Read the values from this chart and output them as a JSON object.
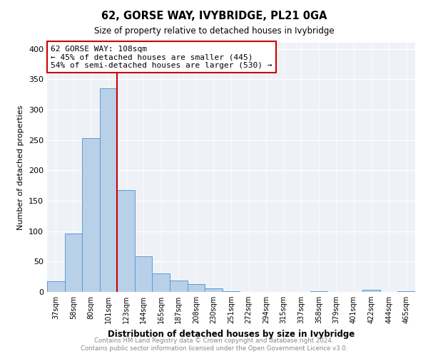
{
  "title": "62, GORSE WAY, IVYBRIDGE, PL21 0GA",
  "subtitle": "Size of property relative to detached houses in Ivybridge",
  "xlabel": "Distribution of detached houses by size in Ivybridge",
  "ylabel": "Number of detached properties",
  "bar_labels": [
    "37sqm",
    "58sqm",
    "80sqm",
    "101sqm",
    "123sqm",
    "144sqm",
    "165sqm",
    "187sqm",
    "208sqm",
    "230sqm",
    "251sqm",
    "272sqm",
    "294sqm",
    "315sqm",
    "337sqm",
    "358sqm",
    "379sqm",
    "401sqm",
    "422sqm",
    "444sqm",
    "465sqm"
  ],
  "bar_values": [
    17,
    96,
    253,
    335,
    168,
    58,
    30,
    19,
    13,
    6,
    1,
    0,
    0,
    0,
    0,
    1,
    0,
    0,
    4,
    0,
    1
  ],
  "bar_color": "#b8d0e8",
  "bar_edge_color": "#5b9bd5",
  "red_line_x": 3.5,
  "red_line_color": "#cc0000",
  "annotation_box_text": "62 GORSE WAY: 108sqm\n← 45% of detached houses are smaller (445)\n54% of semi-detached houses are larger (530) →",
  "annotation_box_edgecolor": "#cc0000",
  "annotation_box_facecolor": "white",
  "ylim": [
    0,
    410
  ],
  "yticks": [
    0,
    50,
    100,
    150,
    200,
    250,
    300,
    350,
    400
  ],
  "footer_line1": "Contains HM Land Registry data © Crown copyright and database right 2024.",
  "footer_line2": "Contains public sector information licensed under the Open Government Licence v3.0.",
  "bg_color": "#eef2f7",
  "figsize": [
    6.0,
    5.0
  ],
  "dpi": 100
}
